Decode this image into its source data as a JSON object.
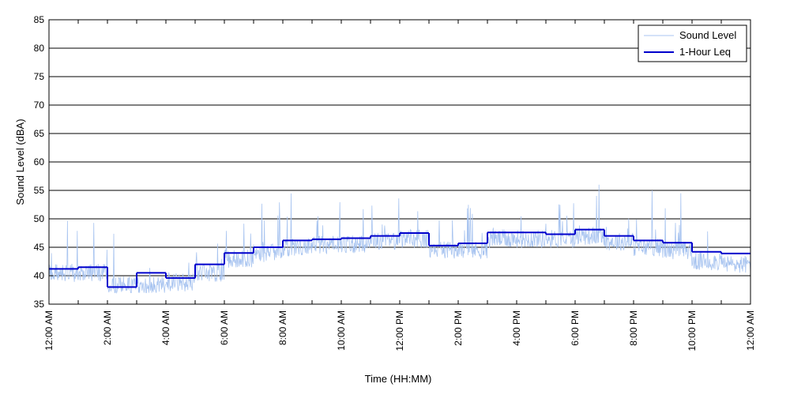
{
  "chart_data": {
    "type": "line",
    "title": "",
    "xlabel": "Time (HH:MM)",
    "ylabel": "Sound Level (dBA)",
    "ylim": [
      35,
      85
    ],
    "yticks": [
      35,
      40,
      45,
      50,
      55,
      60,
      65,
      70,
      75,
      80,
      85
    ],
    "xlim_hours": [
      0,
      24
    ],
    "xticks": [
      {
        "hour": 0,
        "label": "12:00 AM"
      },
      {
        "hour": 2,
        "label": "2:00 AM"
      },
      {
        "hour": 4,
        "label": "4:00 AM"
      },
      {
        "hour": 6,
        "label": "6:00 AM"
      },
      {
        "hour": 8,
        "label": "8:00 AM"
      },
      {
        "hour": 10,
        "label": "10:00 AM"
      },
      {
        "hour": 12,
        "label": "12:00 PM"
      },
      {
        "hour": 14,
        "label": "2:00 PM"
      },
      {
        "hour": 16,
        "label": "4:00 PM"
      },
      {
        "hour": 18,
        "label": "6:00 PM"
      },
      {
        "hour": 20,
        "label": "8:00 PM"
      },
      {
        "hour": 22,
        "label": "10:00 PM"
      },
      {
        "hour": 24,
        "label": "12:00 AM"
      }
    ],
    "grid": "horizontal",
    "legend_position": "top-right",
    "series": [
      {
        "name": "Sound Level",
        "color": "#a8c4f0",
        "style": "thin-noisy",
        "hourly_base": [
          40.5,
          40.5,
          38.3,
          38.3,
          38.8,
          40.5,
          43.0,
          44.0,
          45.0,
          45.5,
          45.5,
          46.0,
          46.5,
          44.5,
          44.5,
          46.5,
          46.5,
          46.5,
          47.0,
          46.0,
          45.0,
          44.5,
          42.5,
          42.0
        ],
        "min": 37,
        "max": 56
      },
      {
        "name": "1-Hour Leq",
        "color": "#0000cc",
        "style": "step",
        "values": [
          41.2,
          41.5,
          38.0,
          40.5,
          39.6,
          42.0,
          44.0,
          45.0,
          46.2,
          46.4,
          46.6,
          47.0,
          47.5,
          45.3,
          45.7,
          47.6,
          47.6,
          47.3,
          48.1,
          47.0,
          46.2,
          45.8,
          44.2,
          43.9
        ]
      }
    ]
  }
}
